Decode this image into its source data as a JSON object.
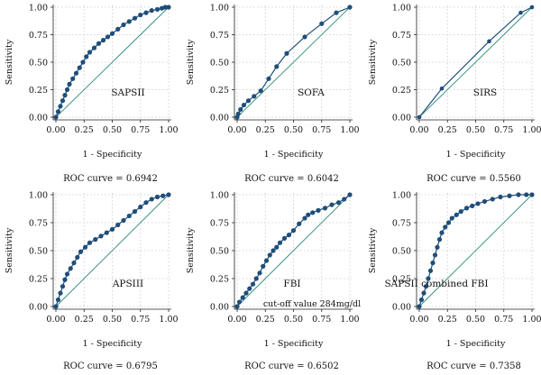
{
  "figure": {
    "colors": {
      "curve": "#1f4e79",
      "diagonal": "#2e8b7a",
      "grid": "#c8c8c8",
      "axis": "#222222"
    }
  },
  "chart_data": [
    {
      "type": "line",
      "label": "SAPSII",
      "xlabel": "1 - Specificity",
      "ylabel": "Sensitivity",
      "roc_text": "ROC curve = 0.6942",
      "xlim": [
        0,
        1
      ],
      "ylim": [
        0,
        1
      ],
      "xticks": [
        "0.00",
        "0.25",
        "0.50",
        "0.75",
        "1.00"
      ],
      "yticks": [
        "0.00",
        "0.25",
        "0.50",
        "0.75",
        "1.00"
      ],
      "grid": true,
      "x": [
        0,
        0.02,
        0.04,
        0.06,
        0.08,
        0.1,
        0.12,
        0.15,
        0.18,
        0.21,
        0.24,
        0.27,
        0.3,
        0.34,
        0.38,
        0.42,
        0.46,
        0.5,
        0.55,
        0.6,
        0.65,
        0.7,
        0.75,
        0.8,
        0.85,
        0.9,
        0.94,
        0.97,
        1
      ],
      "y": [
        0,
        0.05,
        0.1,
        0.15,
        0.2,
        0.25,
        0.3,
        0.35,
        0.4,
        0.45,
        0.5,
        0.55,
        0.59,
        0.63,
        0.67,
        0.7,
        0.73,
        0.76,
        0.8,
        0.84,
        0.87,
        0.9,
        0.93,
        0.95,
        0.97,
        0.98,
        0.99,
        1,
        1
      ]
    },
    {
      "type": "line",
      "label": "SOFA",
      "xlabel": "1 - Specificity",
      "ylabel": "Sensitivity",
      "roc_text": "ROC curve = 0.6042",
      "xlim": [
        0,
        1
      ],
      "ylim": [
        0,
        1
      ],
      "xticks": [
        "0.00",
        "0.25",
        "0.50",
        "0.75",
        "1.00"
      ],
      "yticks": [
        "0.00",
        "0.25",
        "0.50",
        "0.75",
        "1.00"
      ],
      "grid": true,
      "x": [
        0,
        0.01,
        0.03,
        0.06,
        0.1,
        0.15,
        0.21,
        0.28,
        0.35,
        0.44,
        0.6,
        0.75,
        0.88,
        1
      ],
      "y": [
        0,
        0.03,
        0.07,
        0.11,
        0.15,
        0.19,
        0.24,
        0.35,
        0.46,
        0.58,
        0.73,
        0.85,
        0.95,
        1
      ]
    },
    {
      "type": "line",
      "label": "SIRS",
      "xlabel": "1 - Specificity",
      "ylabel": "Sensitivity",
      "roc_text": "ROC curve = 0.5560",
      "xlim": [
        0,
        1
      ],
      "ylim": [
        0,
        1
      ],
      "xticks": [
        "0.00",
        "0.25",
        "0.50",
        "0.75",
        "1.00"
      ],
      "yticks": [
        "0.00",
        "0.25",
        "0.50",
        "0.75",
        "1.00"
      ],
      "grid": true,
      "x": [
        0,
        0.2,
        0.62,
        0.9,
        1
      ],
      "y": [
        0,
        0.26,
        0.69,
        0.95,
        1
      ]
    },
    {
      "type": "line",
      "label": "APSIII",
      "xlabel": "1 - Specificity",
      "ylabel": "Sensitivity",
      "roc_text": "ROC curve = 0.6795",
      "xlim": [
        0,
        1
      ],
      "ylim": [
        0,
        1
      ],
      "xticks": [
        "0.00",
        "0.25",
        "0.50",
        "0.75",
        "1.00"
      ],
      "yticks": [
        "0.00",
        "0.25",
        "0.50",
        "0.75",
        "1.00"
      ],
      "grid": true,
      "x": [
        0,
        0.02,
        0.04,
        0.06,
        0.08,
        0.1,
        0.13,
        0.16,
        0.19,
        0.22,
        0.26,
        0.3,
        0.35,
        0.4,
        0.45,
        0.5,
        0.55,
        0.6,
        0.65,
        0.7,
        0.75,
        0.8,
        0.85,
        0.9,
        0.95,
        1
      ],
      "y": [
        0,
        0.06,
        0.12,
        0.18,
        0.24,
        0.29,
        0.34,
        0.39,
        0.44,
        0.49,
        0.53,
        0.57,
        0.6,
        0.63,
        0.66,
        0.69,
        0.73,
        0.77,
        0.81,
        0.85,
        0.89,
        0.93,
        0.96,
        0.98,
        0.99,
        1
      ]
    },
    {
      "type": "line",
      "label": "FBI",
      "annotation": "cut-off value 284mg/dl",
      "xlabel": "1 - Specificity",
      "ylabel": "Sensitivity",
      "roc_text": "ROC curve = 0.6502",
      "xlim": [
        0,
        1
      ],
      "ylim": [
        0,
        1
      ],
      "xticks": [
        "0.00",
        "0.25",
        "0.50",
        "0.75",
        "1.00"
      ],
      "yticks": [
        "0.00",
        "0.25",
        "0.50",
        "0.75",
        "1.00"
      ],
      "grid": true,
      "x": [
        0,
        0.02,
        0.05,
        0.08,
        0.11,
        0.14,
        0.17,
        0.2,
        0.23,
        0.26,
        0.29,
        0.32,
        0.35,
        0.38,
        0.42,
        0.46,
        0.5,
        0.55,
        0.6,
        0.63,
        0.67,
        0.72,
        0.78,
        0.84,
        0.9,
        0.95,
        1
      ],
      "y": [
        0,
        0.04,
        0.08,
        0.12,
        0.16,
        0.2,
        0.25,
        0.3,
        0.36,
        0.41,
        0.46,
        0.5,
        0.53,
        0.57,
        0.61,
        0.64,
        0.68,
        0.74,
        0.79,
        0.82,
        0.84,
        0.86,
        0.88,
        0.91,
        0.93,
        0.96,
        1
      ]
    },
    {
      "type": "line",
      "label": "SAPSII combined FBI",
      "xlabel": "1 - Specificity",
      "ylabel": "Sensitivity",
      "roc_text": "ROC curve = 0.7358",
      "xlim": [
        0,
        1
      ],
      "ylim": [
        0,
        1
      ],
      "xticks": [
        "0.00",
        "0.25",
        "0.50",
        "0.75",
        "1.00"
      ],
      "yticks": [
        "0.00",
        "0.25",
        "0.50",
        "0.75",
        "1.00"
      ],
      "grid": true,
      "x": [
        0,
        0.02,
        0.04,
        0.06,
        0.08,
        0.1,
        0.12,
        0.14,
        0.16,
        0.18,
        0.2,
        0.23,
        0.26,
        0.29,
        0.33,
        0.37,
        0.42,
        0.47,
        0.52,
        0.58,
        0.65,
        0.72,
        0.8,
        0.88,
        0.95,
        1
      ],
      "y": [
        0,
        0.06,
        0.12,
        0.18,
        0.25,
        0.32,
        0.39,
        0.46,
        0.53,
        0.6,
        0.66,
        0.71,
        0.75,
        0.79,
        0.82,
        0.85,
        0.88,
        0.9,
        0.92,
        0.94,
        0.96,
        0.98,
        0.99,
        1,
        1,
        1
      ]
    }
  ]
}
